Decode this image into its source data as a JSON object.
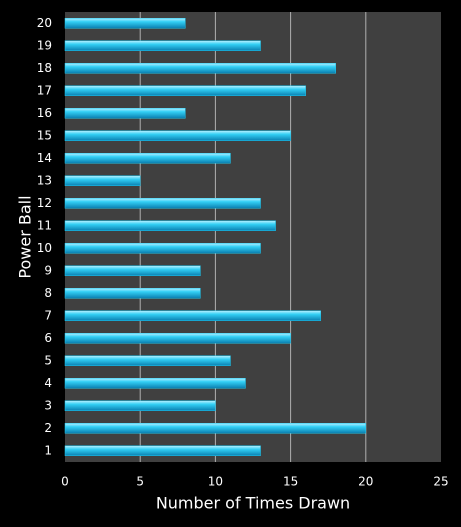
{
  "chart_data": {
    "type": "bar",
    "orientation": "horizontal",
    "x_label": "Number of Times Drawn",
    "y_label": "Power Ball",
    "categories": [
      "1",
      "2",
      "3",
      "4",
      "5",
      "6",
      "7",
      "8",
      "9",
      "10",
      "11",
      "12",
      "13",
      "14",
      "15",
      "16",
      "17",
      "18",
      "19",
      "20"
    ],
    "values": [
      13,
      20,
      10,
      12,
      11,
      15,
      17,
      9,
      9,
      13,
      14,
      13,
      5,
      11,
      15,
      8,
      16,
      18,
      13,
      8
    ],
    "color": "#1ec8f0",
    "xlim": [
      0,
      25
    ],
    "xticks": [
      0,
      5,
      10,
      15,
      20,
      25
    ],
    "grid": true
  }
}
